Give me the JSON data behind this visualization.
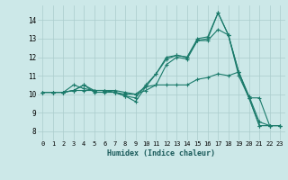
{
  "xlabel": "Humidex (Indice chaleur)",
  "ylabel": "",
  "background_color": "#cce8e8",
  "grid_color": "#aacccc",
  "line_color": "#1a7a6a",
  "xlim": [
    -0.5,
    23.5
  ],
  "ylim": [
    7.5,
    14.8
  ],
  "xticks": [
    0,
    1,
    2,
    3,
    4,
    5,
    6,
    7,
    8,
    9,
    10,
    11,
    12,
    13,
    14,
    15,
    16,
    17,
    18,
    19,
    20,
    21,
    22,
    23
  ],
  "yticks": [
    8,
    9,
    10,
    11,
    12,
    13,
    14
  ],
  "series": [
    [
      10.1,
      10.1,
      10.1,
      10.2,
      10.5,
      10.1,
      10.1,
      10.1,
      9.9,
      9.6,
      10.4,
      11.1,
      11.9,
      12.1,
      12.0,
      13.0,
      13.1,
      14.4,
      13.2,
      11.2,
      9.8,
      8.3,
      8.3,
      8.3
    ],
    [
      10.1,
      10.1,
      10.1,
      10.2,
      10.5,
      10.2,
      10.2,
      10.1,
      10.0,
      10.0,
      10.4,
      10.5,
      10.5,
      10.5,
      10.5,
      10.8,
      10.9,
      11.1,
      11.0,
      11.2,
      9.8,
      9.8,
      8.3,
      8.3
    ],
    [
      10.1,
      10.1,
      10.1,
      10.2,
      10.2,
      10.2,
      10.2,
      10.2,
      10.1,
      10.0,
      10.2,
      10.5,
      11.6,
      12.0,
      11.9,
      12.9,
      12.9,
      13.5,
      13.2,
      11.0,
      9.8,
      8.3,
      8.3,
      8.3
    ],
    [
      10.1,
      10.1,
      10.1,
      10.5,
      10.3,
      10.2,
      10.2,
      10.1,
      9.9,
      9.8,
      10.5,
      11.1,
      12.0,
      12.1,
      12.0,
      12.9,
      13.0,
      14.4,
      13.2,
      11.2,
      9.9,
      8.5,
      8.3,
      8.3
    ]
  ]
}
